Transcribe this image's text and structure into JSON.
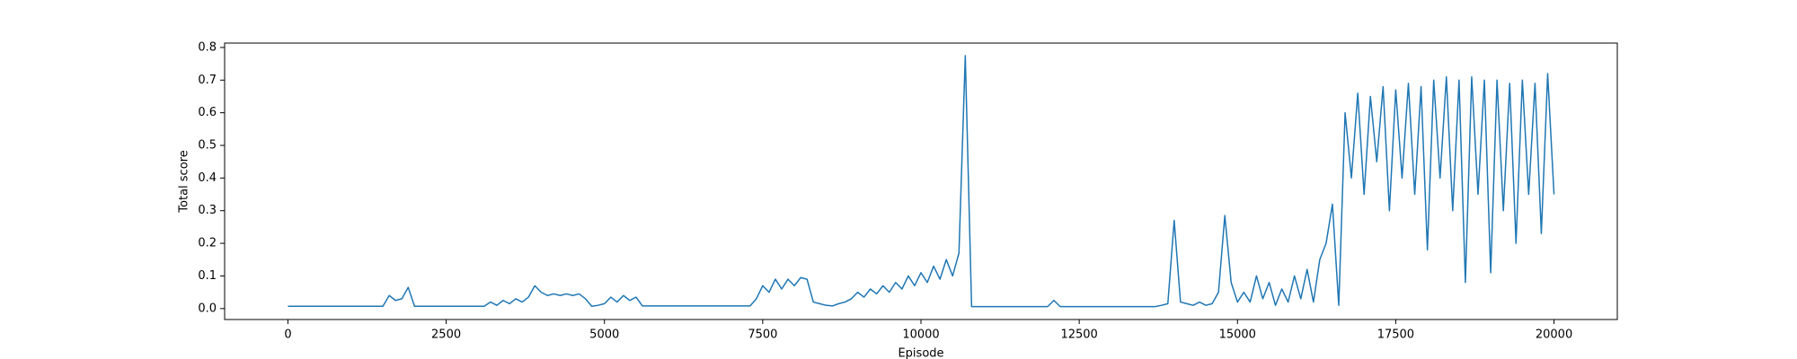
{
  "chart_data": {
    "type": "line",
    "xlabel": "Episode",
    "ylabel": "Total score",
    "x": [
      0,
      100,
      200,
      300,
      400,
      500,
      600,
      700,
      800,
      900,
      1000,
      1100,
      1200,
      1300,
      1400,
      1500,
      1600,
      1700,
      1800,
      1900,
      2000,
      2100,
      2200,
      2300,
      2400,
      2500,
      2600,
      2700,
      2800,
      2900,
      3000,
      3100,
      3200,
      3300,
      3400,
      3500,
      3600,
      3700,
      3800,
      3900,
      4000,
      4100,
      4200,
      4300,
      4400,
      4500,
      4600,
      4700,
      4800,
      4900,
      5000,
      5100,
      5200,
      5300,
      5400,
      5500,
      5600,
      5700,
      5800,
      5900,
      6000,
      6100,
      6200,
      6300,
      6400,
      6500,
      6600,
      6700,
      6800,
      6900,
      7000,
      7100,
      7200,
      7300,
      7400,
      7500,
      7600,
      7700,
      7800,
      7900,
      8000,
      8100,
      8200,
      8300,
      8400,
      8500,
      8600,
      8700,
      8800,
      8900,
      9000,
      9100,
      9200,
      9300,
      9400,
      9500,
      9600,
      9700,
      9800,
      9900,
      10000,
      10100,
      10200,
      10300,
      10400,
      10500,
      10600,
      10700,
      10800,
      10900,
      11000,
      11100,
      11200,
      11300,
      11400,
      11500,
      11600,
      11700,
      11800,
      11900,
      12000,
      12100,
      12200,
      12300,
      12400,
      12500,
      12600,
      12700,
      12800,
      12900,
      13000,
      13100,
      13200,
      13300,
      13400,
      13500,
      13600,
      13700,
      13800,
      13900,
      14000,
      14100,
      14200,
      14300,
      14400,
      14500,
      14600,
      14700,
      14800,
      14900,
      15000,
      15100,
      15200,
      15300,
      15400,
      15500,
      15600,
      15700,
      15800,
      15900,
      16000,
      16100,
      16200,
      16300,
      16400,
      16500,
      16600,
      16700,
      16800,
      16900,
      17000,
      17100,
      17200,
      17300,
      17400,
      17500,
      17600,
      17700,
      17800,
      17900,
      18000,
      18100,
      18200,
      18300,
      18400,
      18500,
      18600,
      18700,
      18800,
      18900,
      19000,
      19100,
      19200,
      19300,
      19400,
      19500,
      19600,
      19700,
      19800,
      19900,
      20000
    ],
    "series": [
      {
        "color": "#1f77b4",
        "values": [
          0.007,
          0.007,
          0.007,
          0.007,
          0.007,
          0.007,
          0.007,
          0.007,
          0.007,
          0.007,
          0.007,
          0.007,
          0.007,
          0.007,
          0.007,
          0.007,
          0.04,
          0.025,
          0.03,
          0.065,
          0.007,
          0.007,
          0.007,
          0.007,
          0.007,
          0.007,
          0.007,
          0.007,
          0.007,
          0.007,
          0.007,
          0.007,
          0.02,
          0.01,
          0.025,
          0.015,
          0.03,
          0.02,
          0.035,
          0.07,
          0.05,
          0.04,
          0.045,
          0.04,
          0.045,
          0.04,
          0.045,
          0.03,
          0.007,
          0.01,
          0.015,
          0.035,
          0.02,
          0.04,
          0.025,
          0.035,
          0.008,
          0.008,
          0.008,
          0.008,
          0.008,
          0.008,
          0.008,
          0.008,
          0.008,
          0.008,
          0.008,
          0.008,
          0.008,
          0.008,
          0.008,
          0.008,
          0.008,
          0.008,
          0.03,
          0.07,
          0.05,
          0.09,
          0.06,
          0.09,
          0.07,
          0.095,
          0.09,
          0.02,
          0.015,
          0.01,
          0.008,
          0.015,
          0.02,
          0.03,
          0.05,
          0.035,
          0.06,
          0.045,
          0.07,
          0.05,
          0.08,
          0.06,
          0.1,
          0.07,
          0.11,
          0.08,
          0.13,
          0.09,
          0.15,
          0.1,
          0.17,
          0.775,
          0.006,
          0.006,
          0.006,
          0.006,
          0.006,
          0.006,
          0.006,
          0.006,
          0.006,
          0.006,
          0.006,
          0.006,
          0.006,
          0.025,
          0.006,
          0.006,
          0.006,
          0.006,
          0.006,
          0.006,
          0.006,
          0.006,
          0.006,
          0.006,
          0.006,
          0.006,
          0.006,
          0.006,
          0.006,
          0.006,
          0.01,
          0.015,
          0.27,
          0.02,
          0.015,
          0.01,
          0.02,
          0.01,
          0.015,
          0.05,
          0.285,
          0.08,
          0.02,
          0.05,
          0.02,
          0.1,
          0.03,
          0.08,
          0.01,
          0.06,
          0.02,
          0.1,
          0.03,
          0.12,
          0.02,
          0.15,
          0.2,
          0.32,
          0.01,
          0.6,
          0.4,
          0.66,
          0.35,
          0.65,
          0.45,
          0.68,
          0.3,
          0.67,
          0.4,
          0.69,
          0.35,
          0.68,
          0.18,
          0.7,
          0.4,
          0.71,
          0.3,
          0.7,
          0.08,
          0.71,
          0.35,
          0.7,
          0.11,
          0.7,
          0.3,
          0.69,
          0.2,
          0.7,
          0.35,
          0.69,
          0.23,
          0.72,
          0.35
        ]
      }
    ],
    "xlim": [
      -1000,
      21000
    ],
    "xticks": [
      0,
      2500,
      5000,
      7500,
      10000,
      12500,
      15000,
      17500,
      20000
    ],
    "ylim": [
      -0.0335,
      0.8135
    ],
    "yticks": [
      {
        "value": 0,
        "label": "0.0"
      },
      {
        "value": 0.1,
        "label": "0.1"
      },
      {
        "value": 0.2,
        "label": "0.2"
      },
      {
        "value": 0.3,
        "label": "0.3"
      },
      {
        "value": 0.4,
        "label": "0.4"
      },
      {
        "value": 0.5,
        "label": "0.5"
      },
      {
        "value": 0.6,
        "label": "0.6"
      },
      {
        "value": 0.7,
        "label": "0.7"
      },
      {
        "value": 0.8,
        "label": "0.8"
      }
    ],
    "grid": false
  }
}
